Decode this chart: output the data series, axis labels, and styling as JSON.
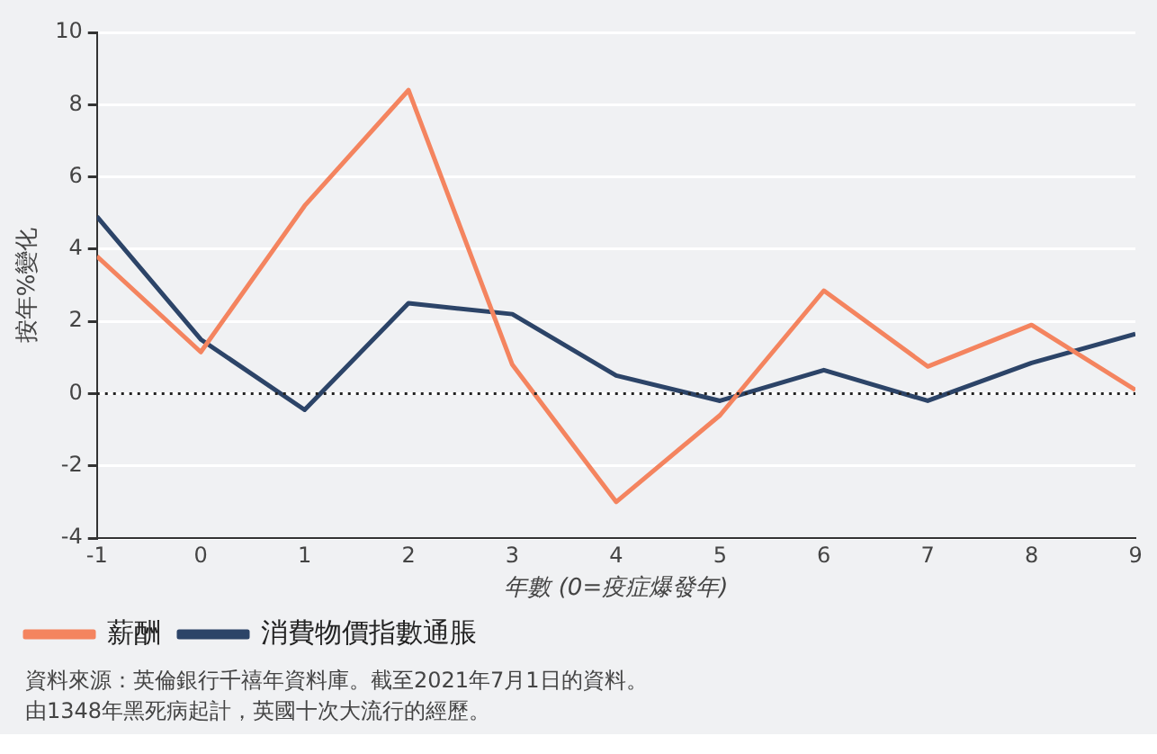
{
  "chart_data": {
    "type": "line",
    "x": [
      -1,
      0,
      1,
      2,
      3,
      4,
      5,
      6,
      7,
      8,
      9
    ],
    "series": [
      {
        "name": "薪酬",
        "color": "#f4845f",
        "values": [
          3.8,
          1.15,
          5.2,
          8.4,
          0.8,
          -3.0,
          -0.6,
          2.85,
          0.75,
          1.9,
          0.1
        ]
      },
      {
        "name": "消費物價指數通脹",
        "color": "#2c4468",
        "values": [
          4.9,
          1.5,
          -0.45,
          2.5,
          2.2,
          0.5,
          -0.2,
          0.65,
          -0.2,
          0.85,
          1.65
        ]
      }
    ],
    "xlabel": "年數 (0=疫症爆發年)",
    "ylabel": "按年%變化",
    "xlim": [
      -1,
      9
    ],
    "xticks": [
      -1,
      0,
      1,
      2,
      3,
      4,
      5,
      6,
      7,
      8,
      9
    ],
    "ylim": [
      -4,
      10
    ],
    "yticks": [
      -4,
      -2,
      0,
      2,
      4,
      6,
      8,
      10
    ],
    "grid": "y",
    "legend": "bottom left",
    "marker": "none",
    "line_style": "solid",
    "ref_lines": [
      {
        "axis": "y",
        "value": 0,
        "color": "#222222",
        "line_style": "dotted"
      }
    ],
    "annotations": [
      "資料來源：英倫銀行千禧年資料庫。截至2021年7月1日的資料。",
      "由1348年黑死病起計，英國十次大流行的經歷。"
    ]
  }
}
